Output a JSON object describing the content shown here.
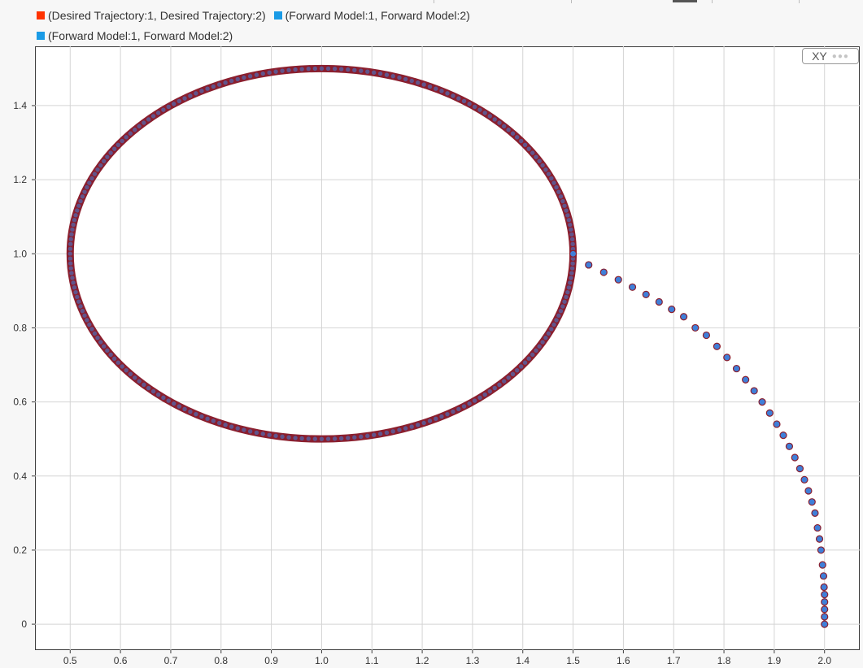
{
  "legend": {
    "items": [
      {
        "label": "(Desired Trajectory:1, Desired Trajectory:2)",
        "color": "#ff3300"
      },
      {
        "label": "(Forward Model:1, Forward Model:2)",
        "color": "#1a9be6"
      },
      {
        "label": "(Forward Model:1, Forward Model:2)",
        "color": "#1a9be6"
      }
    ]
  },
  "badge": {
    "label": "XY",
    "icon": "ellipsis-icon"
  },
  "colors": {
    "trajectory_stroke": "#8b1f2e",
    "marker_fill": "#3f7fd9",
    "marker_stroke": "#8b1f2e",
    "grid": "#d4d4d4",
    "background": "#ffffff"
  },
  "chart_data": {
    "type": "scatter",
    "title": "",
    "xlabel": "",
    "ylabel": "",
    "xlim": [
      0.43,
      2.07
    ],
    "ylim": [
      -0.07,
      1.56
    ],
    "xticks": [
      0.5,
      0.6,
      0.7,
      0.8,
      0.9,
      1.0,
      1.1,
      1.2,
      1.3,
      1.4,
      1.5,
      1.6,
      1.7,
      1.8,
      1.9,
      2.0
    ],
    "xtick_labels": [
      "0.5",
      "0.6",
      "0.7",
      "0.8",
      "0.9",
      "1.0",
      "1.1",
      "1.2",
      "1.3",
      "1.4",
      "1.5",
      "1.6",
      "1.7",
      "1.8",
      "1.9",
      "2.0"
    ],
    "yticks": [
      0,
      0.2,
      0.4,
      0.6,
      0.8,
      1.0,
      1.2,
      1.4
    ],
    "ytick_labels": [
      "0",
      "0.2",
      "0.4",
      "0.6",
      "0.8",
      "1.0",
      "1.2",
      "1.4"
    ],
    "grid": true,
    "legend_position": "top-left",
    "series": [
      {
        "name": "(Desired Trajectory:1, Desired Trajectory:2)",
        "shape": "circle",
        "center": [
          1.0,
          1.0
        ],
        "radius": 0.5
      },
      {
        "name": "(Forward Model:1, Forward Model:2)",
        "x": [
          2.0,
          2.0,
          2.0,
          2.0,
          2.0,
          1.999,
          1.998,
          1.996,
          1.993,
          1.99,
          1.986,
          1.981,
          1.975,
          1.968,
          1.96,
          1.951,
          1.941,
          1.93,
          1.918,
          1.905,
          1.891,
          1.876,
          1.86,
          1.843,
          1.825,
          1.806,
          1.786,
          1.765,
          1.743,
          1.72,
          1.696,
          1.671,
          1.645,
          1.618,
          1.59,
          1.561,
          1.531,
          1.5
        ],
        "y": [
          0.0,
          0.02,
          0.04,
          0.06,
          0.08,
          0.1,
          0.13,
          0.16,
          0.2,
          0.23,
          0.26,
          0.3,
          0.33,
          0.36,
          0.39,
          0.42,
          0.45,
          0.48,
          0.51,
          0.54,
          0.57,
          0.6,
          0.63,
          0.66,
          0.69,
          0.72,
          0.75,
          0.78,
          0.8,
          0.83,
          0.85,
          0.87,
          0.89,
          0.91,
          0.93,
          0.95,
          0.97,
          1.0
        ]
      }
    ]
  }
}
